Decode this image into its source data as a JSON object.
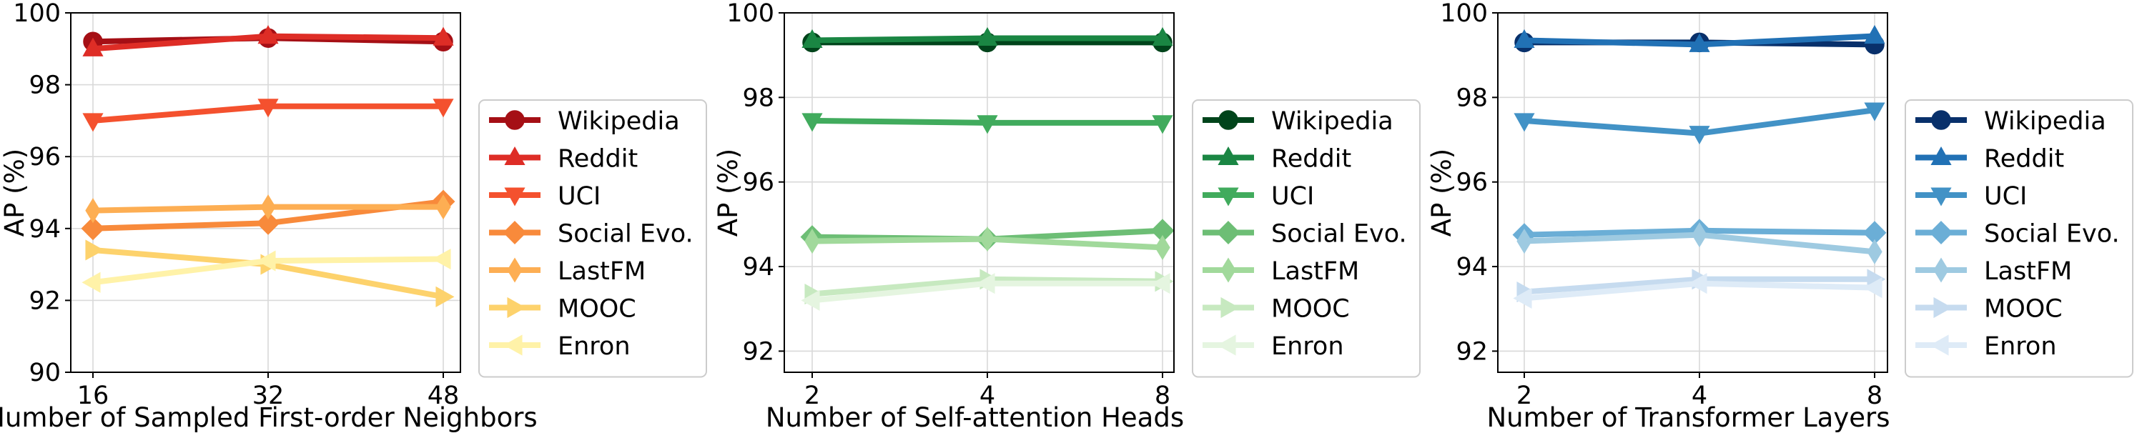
{
  "chart_data": [
    {
      "type": "line",
      "xlabel": "Number of Sampled First-order Neighbors",
      "ylabel": "AP (%)",
      "categories": [
        "16",
        "32",
        "48"
      ],
      "ylim": [
        90,
        100
      ],
      "yticks": [
        "90",
        "92",
        "94",
        "96",
        "98",
        "100"
      ],
      "grid": true,
      "legend_placement": "right-outside",
      "series": [
        {
          "name": "Wikipedia",
          "values": [
            99.2,
            99.3,
            99.2
          ],
          "color": "#a50f15",
          "marker": "circle"
        },
        {
          "name": "Reddit",
          "values": [
            99.0,
            99.35,
            99.3
          ],
          "color": "#de2d26",
          "marker": "triangle-up"
        },
        {
          "name": "UCI",
          "values": [
            97.0,
            97.4,
            97.4
          ],
          "color": "#f4512e",
          "marker": "triangle-down"
        },
        {
          "name": "Social Evo.",
          "values": [
            94.0,
            94.15,
            94.75
          ],
          "color": "#f88a3b",
          "marker": "diamond"
        },
        {
          "name": "LastFM",
          "values": [
            94.5,
            94.6,
            94.6
          ],
          "color": "#fdae53",
          "marker": "thin-diamond"
        },
        {
          "name": "MOOC",
          "values": [
            93.4,
            93.0,
            92.1
          ],
          "color": "#fdd26c",
          "marker": "triangle-right"
        },
        {
          "name": "Enron",
          "values": [
            92.5,
            93.1,
            93.15
          ],
          "color": "#fff2a8",
          "marker": "triangle-left"
        }
      ]
    },
    {
      "type": "line",
      "xlabel": "Number of Self-attention Heads",
      "ylabel": "AP (%)",
      "categories": [
        "2",
        "4",
        "8"
      ],
      "ylim": [
        91.5,
        100
      ],
      "yticks": [
        "92",
        "94",
        "96",
        "98",
        "100"
      ],
      "grid": true,
      "legend_placement": "right-outside",
      "series": [
        {
          "name": "Wikipedia",
          "values": [
            99.3,
            99.3,
            99.3
          ],
          "color": "#00441b",
          "marker": "circle"
        },
        {
          "name": "Reddit",
          "values": [
            99.35,
            99.4,
            99.4
          ],
          "color": "#1a8643",
          "marker": "triangle-up"
        },
        {
          "name": "UCI",
          "values": [
            97.45,
            97.4,
            97.4
          ],
          "color": "#41ab5d",
          "marker": "triangle-down"
        },
        {
          "name": "Social Evo.",
          "values": [
            94.7,
            94.65,
            94.85
          ],
          "color": "#6dbe75",
          "marker": "diamond"
        },
        {
          "name": "LastFM",
          "values": [
            94.6,
            94.65,
            94.45
          ],
          "color": "#a1d99b",
          "marker": "thin-diamond"
        },
        {
          "name": "MOOC",
          "values": [
            93.35,
            93.7,
            93.65
          ],
          "color": "#c7e9c0",
          "marker": "triangle-right"
        },
        {
          "name": "Enron",
          "values": [
            93.2,
            93.6,
            93.6
          ],
          "color": "#e5f5e0",
          "marker": "triangle-left"
        }
      ]
    },
    {
      "type": "line",
      "xlabel": "Number of Transformer Layers",
      "ylabel": "AP (%)",
      "categories": [
        "2",
        "4",
        "8"
      ],
      "ylim": [
        91.5,
        100
      ],
      "yticks": [
        "92",
        "94",
        "96",
        "98",
        "100"
      ],
      "grid": true,
      "legend_placement": "right-outside",
      "series": [
        {
          "name": "Wikipedia",
          "values": [
            99.3,
            99.3,
            99.25
          ],
          "color": "#08306b",
          "marker": "circle"
        },
        {
          "name": "Reddit",
          "values": [
            99.35,
            99.25,
            99.45
          ],
          "color": "#2171b5",
          "marker": "triangle-up"
        },
        {
          "name": "UCI",
          "values": [
            97.45,
            97.15,
            97.7
          ],
          "color": "#4292c6",
          "marker": "triangle-down"
        },
        {
          "name": "Social Evo.",
          "values": [
            94.75,
            94.85,
            94.8
          ],
          "color": "#6baed6",
          "marker": "diamond"
        },
        {
          "name": "LastFM",
          "values": [
            94.6,
            94.75,
            94.35
          ],
          "color": "#9ecae1",
          "marker": "thin-diamond"
        },
        {
          "name": "MOOC",
          "values": [
            93.4,
            93.7,
            93.7
          ],
          "color": "#c6dbef",
          "marker": "triangle-right"
        },
        {
          "name": "Enron",
          "values": [
            93.25,
            93.6,
            93.5
          ],
          "color": "#deebf7",
          "marker": "triangle-left"
        }
      ]
    }
  ]
}
